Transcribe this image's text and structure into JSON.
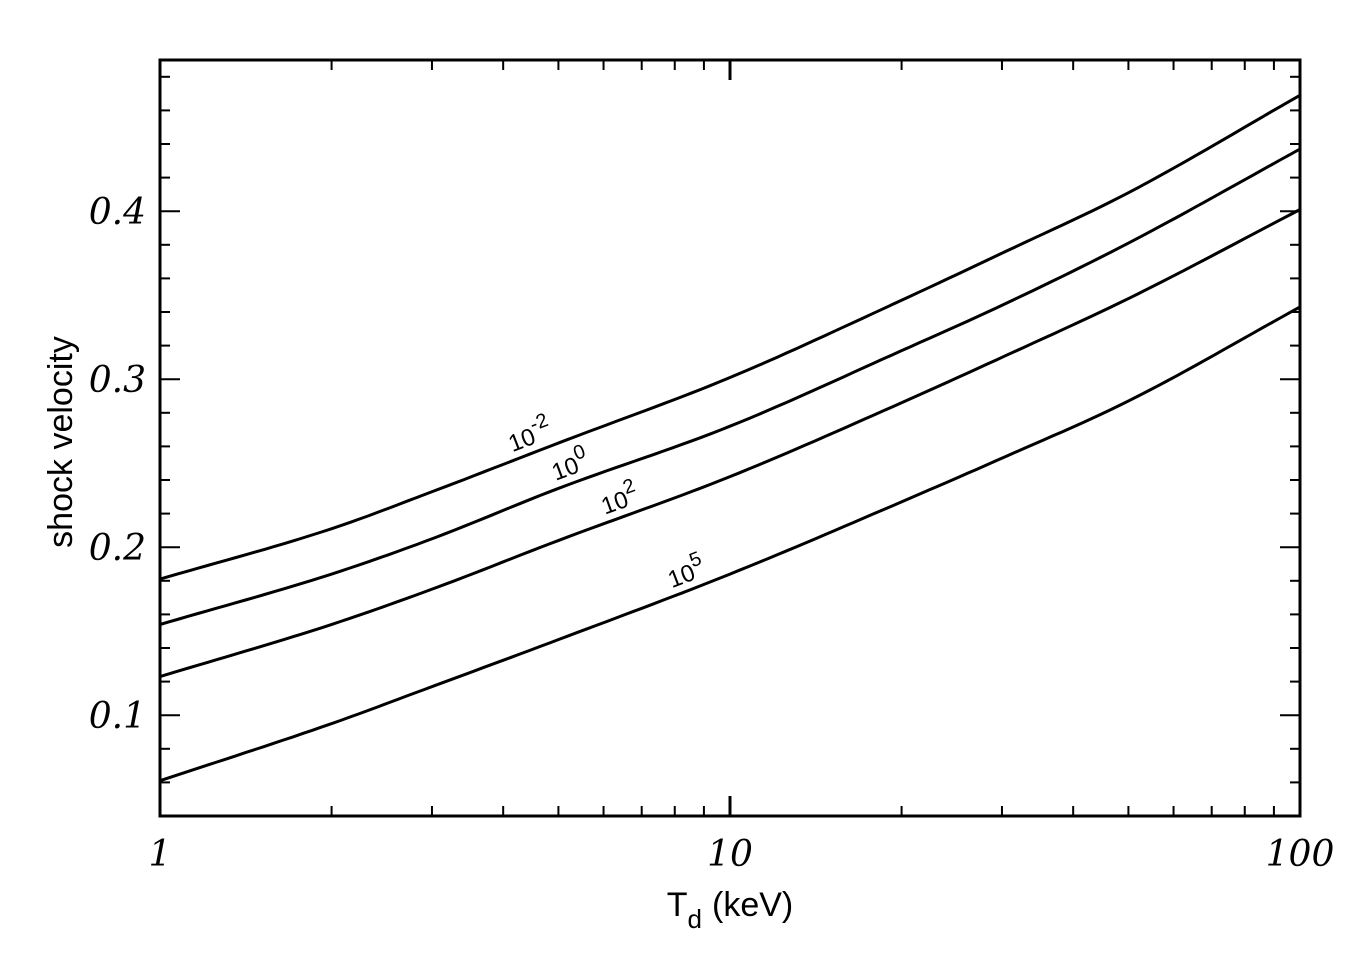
{
  "chart_data": {
    "type": "line",
    "title": "",
    "xlabel": "T",
    "xlabel_subscript": "d",
    "xlabel_units": "(keV)",
    "ylabel": "shock velocity",
    "xscale": "log",
    "xlim": [
      1,
      100
    ],
    "ylim": [
      0.04,
      0.49
    ],
    "grid": false,
    "legend": "none",
    "x_ticks": [
      {
        "value": 1,
        "label": "1"
      },
      {
        "value": 10,
        "label": "10"
      },
      {
        "value": 100,
        "label": "100"
      }
    ],
    "y_ticks": [
      {
        "value": 0.1,
        "label": "0.1"
      },
      {
        "value": 0.2,
        "label": "0.2"
      },
      {
        "value": 0.3,
        "label": "0.3"
      },
      {
        "value": 0.4,
        "label": "0.4"
      }
    ],
    "x": [
      1,
      2,
      3,
      5,
      10,
      20,
      30,
      50,
      100
    ],
    "series": [
      {
        "label_base": "10",
        "label_exp": "-2",
        "label_at_x": 4.2,
        "values": [
          0.181,
          0.211,
          0.233,
          0.262,
          0.301,
          0.347,
          0.375,
          0.411,
          0.469
        ]
      },
      {
        "label_base": "10",
        "label_exp": "0",
        "label_at_x": 5.0,
        "values": [
          0.154,
          0.184,
          0.205,
          0.235,
          0.272,
          0.317,
          0.344,
          0.381,
          0.437
        ]
      },
      {
        "label_base": "10",
        "label_exp": "2",
        "label_at_x": 6.1,
        "values": [
          0.123,
          0.154,
          0.175,
          0.204,
          0.242,
          0.286,
          0.313,
          0.348,
          0.401
        ]
      },
      {
        "label_base": "10",
        "label_exp": "5",
        "label_at_x": 8.0,
        "values": [
          0.061,
          0.095,
          0.117,
          0.145,
          0.184,
          0.227,
          0.253,
          0.287,
          0.343
        ]
      }
    ]
  }
}
